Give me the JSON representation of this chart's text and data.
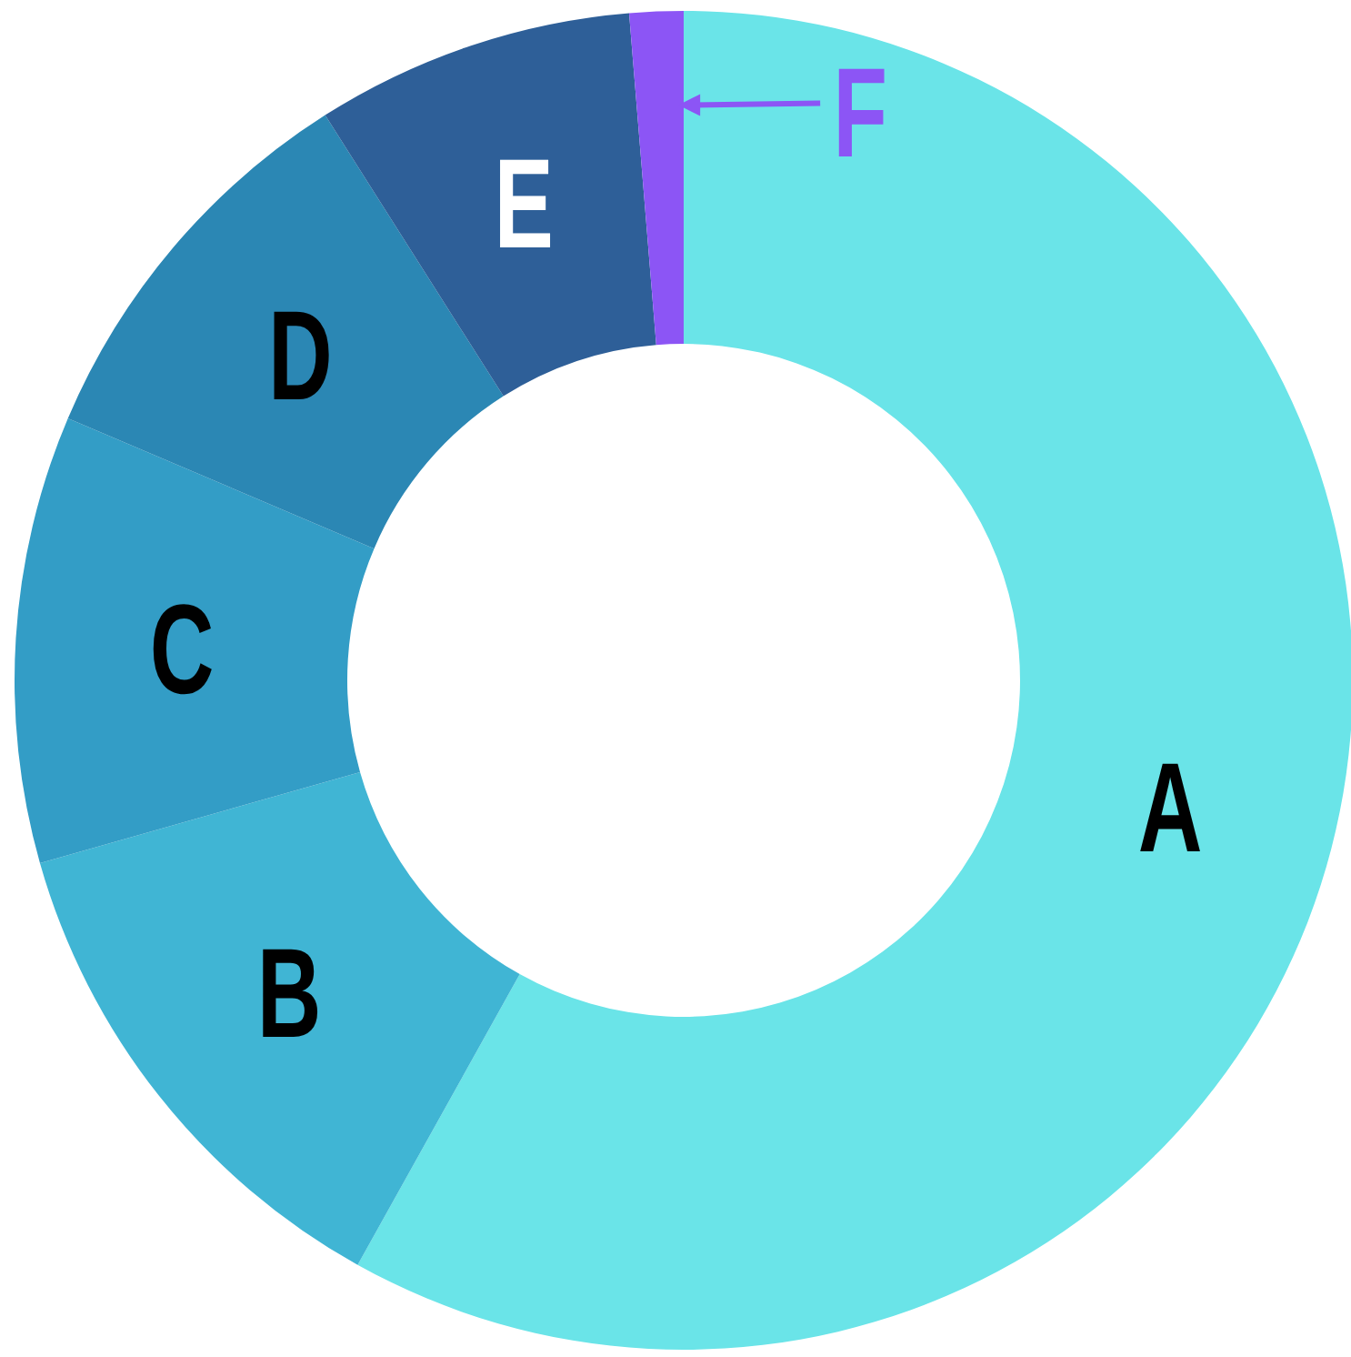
{
  "chart_data": {
    "type": "donut",
    "categories": [
      "A",
      "B",
      "C",
      "D",
      "E",
      "F"
    ],
    "values": [
      58.1,
      12.5,
      10.8,
      9.6,
      7.7,
      1.3
    ],
    "colors": [
      "#6ae4e8",
      "#40b5d4",
      "#339dc6",
      "#2b87b4",
      "#2e5f98",
      "#8c55f5"
    ]
  }
}
